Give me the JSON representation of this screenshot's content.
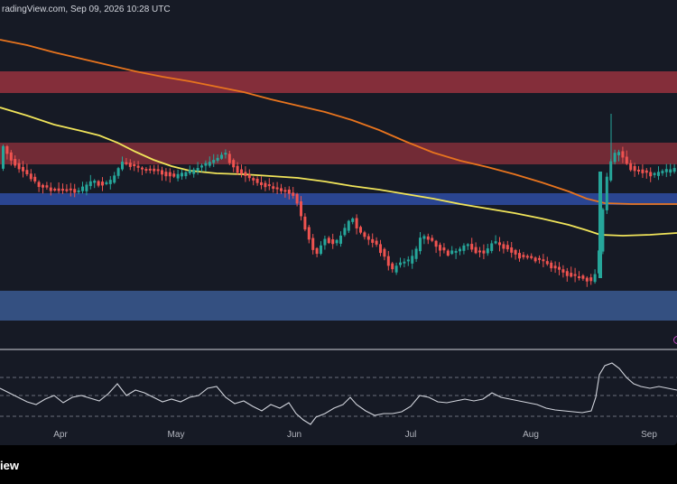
{
  "header": {
    "text": "radingView.com, Sep 09, 2026 10:28 UTC"
  },
  "footer": {
    "brand": "iew"
  },
  "colors": {
    "background": "#161a25",
    "supply_zone": "#8a2f3b",
    "demand_zone": "#2a4591",
    "demand_zone_lower": "#3a5a92",
    "ma_long": "#e8741e",
    "ma_short": "#f0e45a",
    "candle_up": "#26a69a",
    "candle_down": "#ef5350",
    "rsi_line": "#d1d4dc"
  },
  "x_axis": {
    "months": [
      {
        "label": "Apr",
        "date": "2026-04-01"
      },
      {
        "label": "May",
        "date": "2026-05-01"
      },
      {
        "label": "Jun",
        "date": "2026-06-01"
      },
      {
        "label": "Jul",
        "date": "2026-07-01"
      },
      {
        "label": "Aug",
        "date": "2026-08-01"
      },
      {
        "label": "Sep",
        "date": "2026-09-01"
      }
    ]
  },
  "chart_data": {
    "type": "candlestick",
    "title": "",
    "x_axis": "time (daily)",
    "zones": [
      {
        "name": "",
        "kind": "supply"
      },
      {
        "name": "",
        "kind": "supply"
      },
      {
        "name": "",
        "kind": "demand"
      },
      {
        "name": "",
        "kind": "demand"
      }
    ],
    "indicators": [
      "moving average (orange)",
      "moving average (yellow)",
      "RSI"
    ],
    "grid": false,
    "legend": "none"
  }
}
